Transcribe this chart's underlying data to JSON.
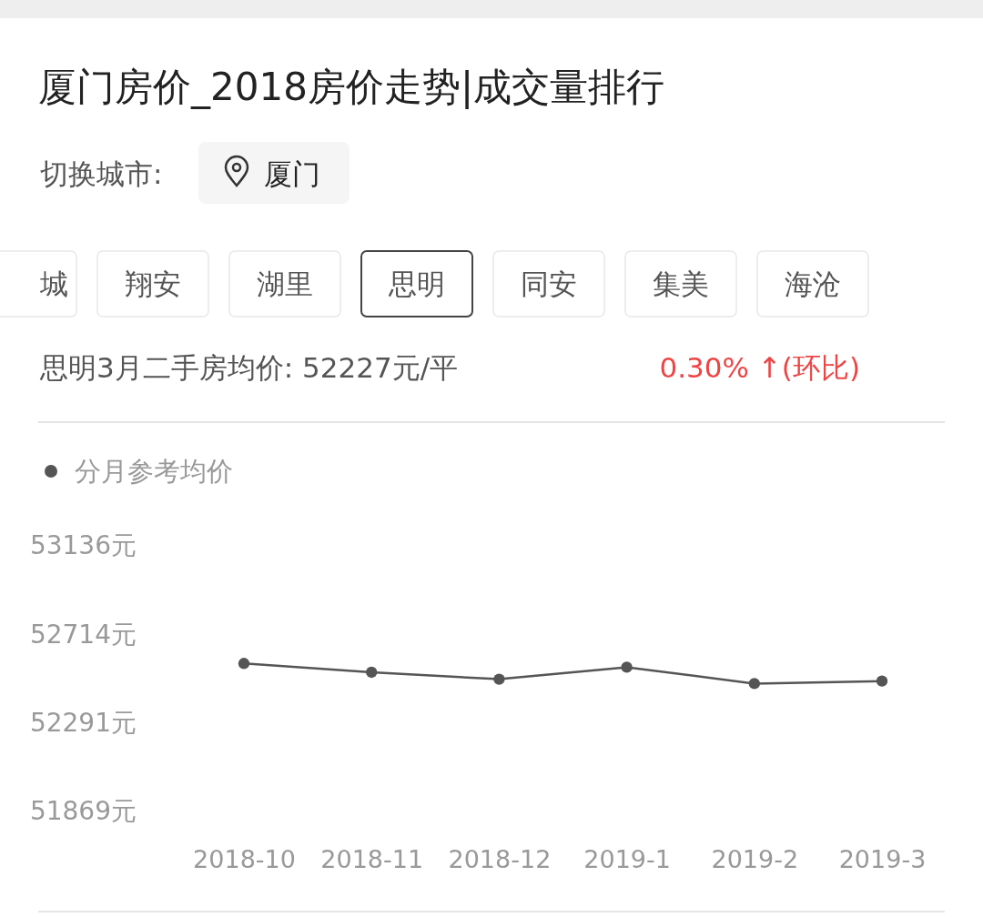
{
  "chart_data": {
    "type": "line",
    "title": "厦门房价_2018房价走势|成交量排行",
    "annotations": [
      "切换城市:",
      "厦门",
      "城",
      "翔安",
      "湖里",
      "思明",
      "同安",
      "集美",
      "海沧",
      "思明3月二手房均价: 52227元/平",
      "0.30% ↑(环比)"
    ],
    "categories": [
      "2018-10",
      "2018-11",
      "2018-12",
      "2019-1",
      "2019-2",
      "2019-3"
    ],
    "series": [
      {
        "name": "分月参考均价",
        "color": "#555555",
        "values": [
          52575,
          52533,
          52500,
          52557,
          52479,
          52491
        ]
      }
    ],
    "ylim": [
      51869,
      53136
    ],
    "yticks": [
      {
        "value": 51869,
        "label": "51869元"
      },
      {
        "value": 52291,
        "label": "52291元"
      },
      {
        "value": 52714,
        "label": "52714元"
      },
      {
        "value": 53136,
        "label": "53136元"
      }
    ],
    "grid": false,
    "legend": "top left",
    "marker": "circle",
    "line_style": "solid"
  }
}
